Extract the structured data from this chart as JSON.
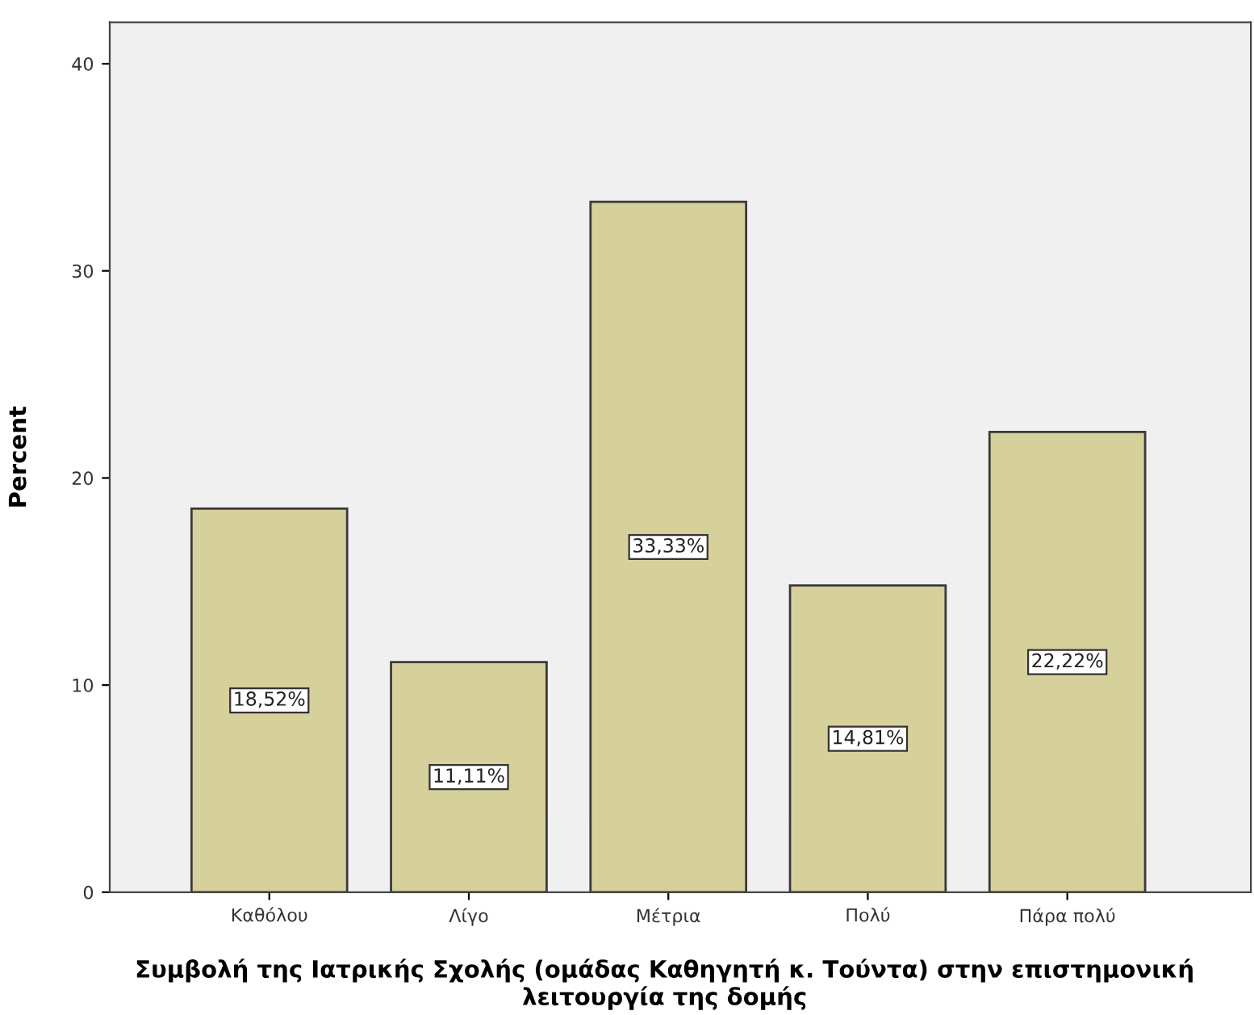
{
  "chart_data": {
    "type": "bar",
    "xlabel": "Συμβολή της Ιατρικής Σχολής (ομάδας Καθηγητή κ. Τούντα) στην επιστημονική λειτουργία της δομής",
    "ylabel": "Percent",
    "categories": [
      "Καθόλου",
      "Λίγο",
      "Μέτρια",
      "Πολύ",
      "Πάρα πολύ"
    ],
    "values": [
      18.52,
      11.11,
      33.33,
      14.81,
      22.22
    ],
    "value_labels": [
      "18,52%",
      "11,11%",
      "33,33%",
      "14,81%",
      "22,22%"
    ],
    "color": "#d6d09a",
    "ylim": [
      0,
      42
    ],
    "yticks": [
      0,
      10,
      20,
      30,
      40
    ],
    "grid": false,
    "legend": false
  }
}
